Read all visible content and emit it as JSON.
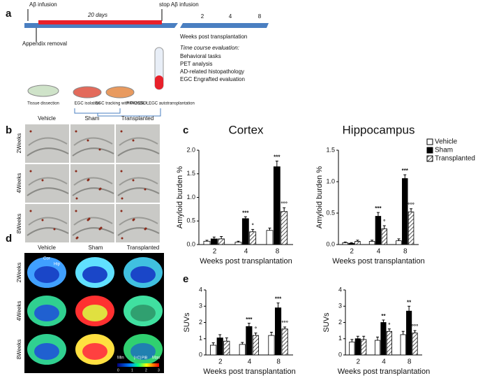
{
  "panel_a": {
    "label": "a",
    "start": "Aβ infusion",
    "duration": "20 days",
    "stop": "stop Aβ infusion",
    "weeks": [
      "2",
      "4",
      "8"
    ],
    "weeks_label": "Weeks post transplantation",
    "appendix": "Appendix removal",
    "eval_title": "Time course evaluation:",
    "eval_items": [
      "Behavioral tasks",
      "PET analysis",
      "AD-related histopathology",
      "EGC Engrafted evaluation"
    ],
    "steps": [
      "Tissue dissection",
      "EGC isolation",
      "EGC tracking with PKH26GL",
      "PKH26GL⁺ EGC autotransplantation"
    ]
  },
  "panel_b": {
    "label": "b",
    "columns": [
      "Vehicle",
      "Sham",
      "Transplanted"
    ],
    "rows": [
      "2Weeks",
      "4Weeks",
      "8Weeks"
    ]
  },
  "panel_d": {
    "label": "d",
    "columns": [
      "Vehicle",
      "Sham",
      "Transplanted"
    ],
    "rows": [
      "2Weeks",
      "4Weeks",
      "8Weeks"
    ],
    "regions": [
      "Cor",
      "Hip"
    ],
    "scale_min": "Min",
    "scale_unit": "[¹¹C] PIB",
    "scale_max": "Max",
    "scale_ticks": [
      "0",
      "1",
      "2",
      "3"
    ]
  },
  "panel_c": {
    "label": "c"
  },
  "panel_e": {
    "label": "e"
  },
  "chart_data": [
    {
      "type": "bar",
      "title": "Cortex",
      "ylabel": "Amyloid burden %",
      "xlabel": "Weeks post transplantation",
      "categories": [
        "2",
        "4",
        "8"
      ],
      "ylim": [
        0,
        2
      ],
      "yticks": [
        {
          "value": 0,
          "label": "0.0"
        },
        0.5,
        {
          "value": 1,
          "label": "1.0"
        },
        1.5,
        {
          "value": 2,
          "label": "2.0"
        }
      ],
      "series": [
        {
          "name": "Vehicle",
          "color": "#ffffff",
          "values": [
            0.07,
            0.05,
            0.3
          ],
          "errors": [
            0.02,
            0.02,
            0.05
          ],
          "marks": [
            null,
            null,
            null
          ]
        },
        {
          "name": "Sham",
          "color": "#000000",
          "values": [
            0.12,
            0.55,
            1.65
          ],
          "errors": [
            0.04,
            0.04,
            0.12
          ],
          "marks": [
            null,
            "***",
            "***"
          ]
        },
        {
          "name": "Transplanted",
          "color": "hatch",
          "values": [
            0.12,
            0.27,
            0.7
          ],
          "errors": [
            0.05,
            0.05,
            0.08
          ],
          "marks": [
            null,
            "°",
            "°°°"
          ]
        }
      ]
    },
    {
      "type": "bar",
      "title": "Hippocampus",
      "ylabel": "Amyloid burden %",
      "xlabel": "Weeks post transplantation",
      "categories": [
        "2",
        "4",
        "8"
      ],
      "ylim": [
        0,
        1.5
      ],
      "yticks": [
        {
          "value": 0,
          "label": "0.0"
        },
        0.5,
        {
          "value": 1,
          "label": "1.0"
        },
        1.5
      ],
      "legend": "upper right",
      "series": [
        {
          "name": "Vehicle",
          "color": "#ffffff",
          "values": [
            0.03,
            0.05,
            0.06
          ],
          "errors": [
            0.01,
            0.02,
            0.03
          ],
          "marks": [
            null,
            null,
            null
          ]
        },
        {
          "name": "Sham",
          "color": "#000000",
          "values": [
            0.02,
            0.45,
            1.05
          ],
          "errors": [
            0.01,
            0.06,
            0.06
          ],
          "marks": [
            null,
            "***",
            "***"
          ]
        },
        {
          "name": "Transplanted",
          "color": "hatch",
          "values": [
            0.05,
            0.25,
            0.52
          ],
          "errors": [
            0.02,
            0.05,
            0.05
          ],
          "marks": [
            null,
            "°",
            "°°°"
          ]
        }
      ]
    },
    {
      "type": "bar",
      "ylabel": "SUVs",
      "xlabel": "Weeks post transplantation",
      "categories": [
        "2",
        "4",
        "8"
      ],
      "ylim": [
        0,
        4
      ],
      "yticks": [
        0,
        1,
        2,
        3,
        4
      ],
      "series": [
        {
          "name": "Vehicle",
          "color": "#ffffff",
          "values": [
            0.6,
            0.65,
            1.2
          ],
          "errors": [
            0.15,
            0.12,
            0.2
          ],
          "marks": [
            null,
            null,
            null
          ]
        },
        {
          "name": "Sham",
          "color": "#000000",
          "values": [
            1.05,
            1.75,
            2.9
          ],
          "errors": [
            0.2,
            0.2,
            0.3
          ],
          "marks": [
            null,
            "***",
            "***"
          ]
        },
        {
          "name": "Transplanted",
          "color": "hatch",
          "values": [
            0.85,
            1.2,
            1.6
          ],
          "errors": [
            0.2,
            0.15,
            0.12
          ],
          "marks": [
            null,
            "°",
            "°°°"
          ]
        }
      ]
    },
    {
      "type": "bar",
      "ylabel": "SUVs",
      "xlabel": "Weeks post transplantation",
      "categories": [
        "2",
        "4",
        "8"
      ],
      "ylim": [
        0,
        4
      ],
      "yticks": [
        0,
        1,
        2,
        3,
        4
      ],
      "series": [
        {
          "name": "Vehicle",
          "color": "#ffffff",
          "values": [
            0.8,
            0.9,
            1.25
          ],
          "errors": [
            0.15,
            0.2,
            0.2
          ],
          "marks": [
            null,
            null,
            null
          ]
        },
        {
          "name": "Sham",
          "color": "#000000",
          "values": [
            1.0,
            2.0,
            2.7
          ],
          "errors": [
            0.15,
            0.15,
            0.3
          ],
          "marks": [
            null,
            "**",
            "**"
          ]
        },
        {
          "name": "Transplanted",
          "color": "hatch",
          "values": [
            0.95,
            1.45,
            1.35
          ],
          "errors": [
            0.2,
            0.15,
            0.15
          ],
          "marks": [
            null,
            "°",
            "°°°"
          ]
        }
      ]
    }
  ]
}
